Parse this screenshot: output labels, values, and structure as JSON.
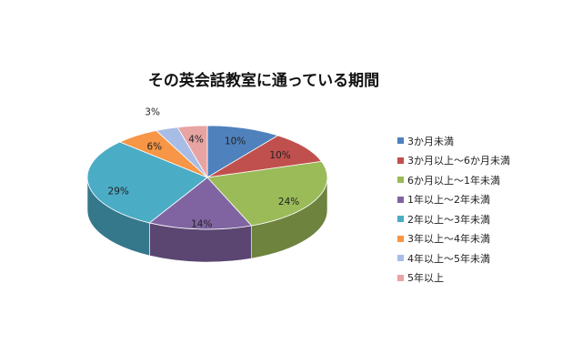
{
  "chart_data": {
    "type": "pie",
    "title": "その英会話教室に通っている期間",
    "categories": [
      "3か月未満",
      "3か月以上～6か月未満",
      "6か月以上～1年未満",
      "1年以上～2年未満",
      "2年以上～3年未満",
      "3年以上～4年未満",
      "4年以上～5年未満",
      "5年以上"
    ],
    "values": [
      10,
      10,
      24,
      14,
      29,
      6,
      3,
      4
    ],
    "labels": [
      "10%",
      "10%",
      "24%",
      "14%",
      "29%",
      "6%",
      "3%",
      "4%"
    ],
    "colors": [
      "#4f81bd",
      "#c0504d",
      "#9bbb59",
      "#8064a2",
      "#4bacc6",
      "#f79646",
      "#a7bde6",
      "#e8a3a3"
    ],
    "style": "3d",
    "legend": "right"
  }
}
